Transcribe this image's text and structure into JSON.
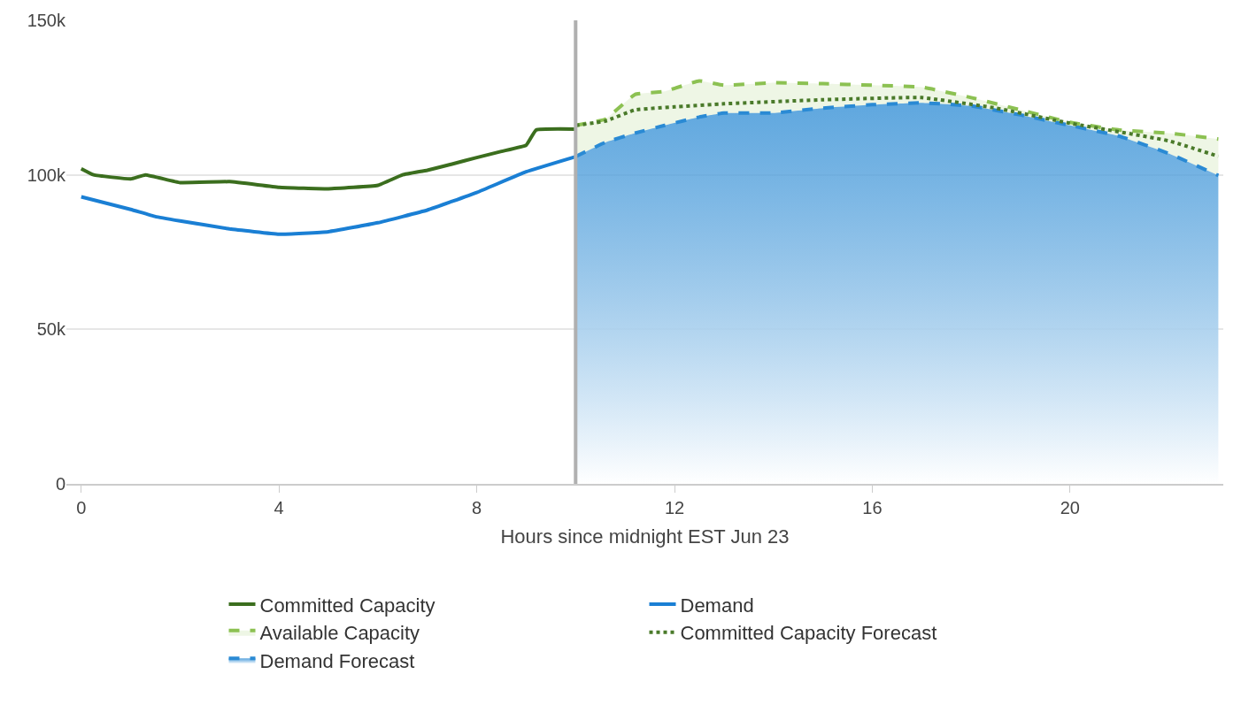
{
  "chart_data": {
    "type": "line",
    "xlabel": "Hours since midnight EST Jun 23",
    "xlim": [
      -0.3,
      23.1
    ],
    "xticks": [
      0,
      4,
      8,
      12,
      16,
      20
    ],
    "ylim": [
      0,
      150000
    ],
    "yticks": [
      {
        "value": 0,
        "label": "0"
      },
      {
        "value": 50000,
        "label": "50k"
      },
      {
        "value": 100000,
        "label": "100k"
      },
      {
        "value": 150000,
        "label": "150k"
      }
    ],
    "grid": "y",
    "legend": "bottom",
    "marker": "none",
    "ref_lines": [
      {
        "axis": "x",
        "value": 10,
        "color": "#b0b0b0"
      }
    ],
    "series": [
      {
        "name": "Committed Capacity",
        "color": "#3b6e1e",
        "line_style": "solid",
        "x": [
          0,
          0.25,
          1,
          1.3,
          2,
          3,
          4,
          5,
          6,
          6.5,
          7,
          7.5,
          8,
          8.5,
          9,
          9.2,
          10
        ],
        "values": [
          102000,
          100000,
          98700,
          100000,
          97500,
          97800,
          96000,
          95500,
          96600,
          100000,
          101500,
          103500,
          105600,
          107600,
          109600,
          114500,
          114800
        ]
      },
      {
        "name": "Demand",
        "color": "#1a7fd4",
        "line_style": "solid",
        "x": [
          0,
          1,
          1.5,
          2,
          3,
          4,
          5,
          6,
          7,
          8,
          9,
          10
        ],
        "values": [
          92900,
          88800,
          86500,
          85100,
          82500,
          80800,
          81600,
          84500,
          88600,
          94300,
          101000,
          105900
        ]
      },
      {
        "name": "Available Capacity",
        "type": "area",
        "color": "#8cc152",
        "line_style": "dashed",
        "x": [
          10,
          10.6,
          11.2,
          11.8,
          12.5,
          13,
          14,
          15,
          16,
          17,
          18,
          19,
          20,
          21,
          22,
          23
        ],
        "values": [
          116000,
          118000,
          126000,
          127000,
          130400,
          129000,
          129800,
          129500,
          129000,
          128400,
          125000,
          121000,
          117000,
          114500,
          113500,
          111600
        ]
      },
      {
        "name": "Committed Capacity Forecast",
        "color": "#4a7a2a",
        "line_style": "dotted",
        "x": [
          10,
          10.6,
          11.2,
          12,
          13,
          15,
          17,
          18.5,
          20,
          22,
          23
        ],
        "values": [
          116000,
          117400,
          121000,
          122000,
          123000,
          124300,
          125000,
          121600,
          116700,
          111000,
          106000
        ]
      },
      {
        "name": "Demand Forecast",
        "type": "area",
        "color": "#2a8ad4",
        "line_style": "dashed",
        "x": [
          10,
          10.6,
          11.2,
          11.8,
          12.5,
          13,
          14,
          15,
          16,
          17,
          18,
          19,
          20,
          21,
          22,
          23
        ],
        "values": [
          105900,
          110500,
          113500,
          116000,
          118700,
          120000,
          120000,
          121600,
          122700,
          123300,
          122300,
          119400,
          116000,
          112500,
          106900,
          99800
        ]
      }
    ]
  }
}
